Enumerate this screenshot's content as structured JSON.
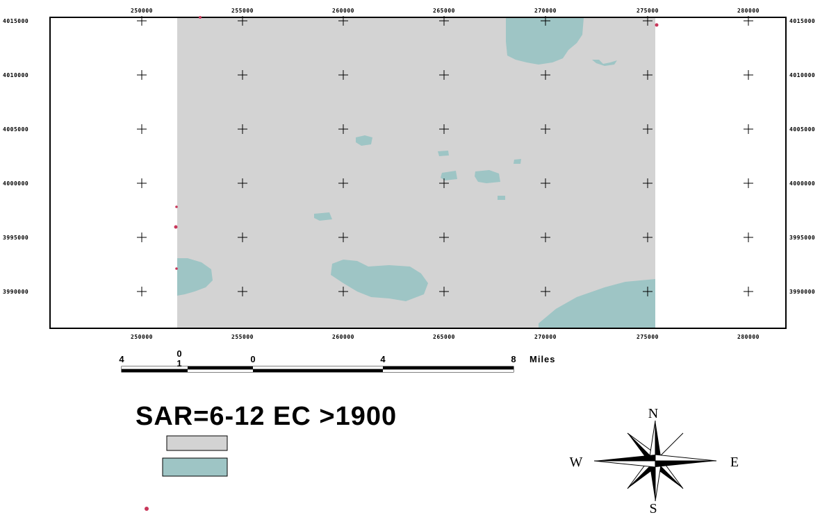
{
  "map": {
    "x_ticks": [
      "250000",
      "255000",
      "260000",
      "265000",
      "270000",
      "275000",
      "280000"
    ],
    "y_ticks_left": [
      "4015000",
      "4010000",
      "4005000",
      "4000000",
      "3995000",
      "3990000"
    ],
    "y_ticks_right": [
      "4015000",
      "4010000",
      "4005000",
      "4000000",
      "3995000",
      "3990000"
    ],
    "colors": {
      "study_area": "#d3d3d3",
      "saline_zone": "#9ec5c5",
      "point": "#c8375a",
      "frame": "#000000"
    }
  },
  "scalebar": {
    "labels": [
      "4",
      "0",
      "0",
      "4",
      "8",
      "Miles"
    ],
    "sub_label": "1"
  },
  "legend": {
    "title": "SAR=6-12  EC >1900",
    "swatches": [
      "study_area",
      "saline_zone",
      "point"
    ]
  },
  "compass": {
    "north": "N",
    "south": "S",
    "east": "E",
    "west": "W"
  }
}
